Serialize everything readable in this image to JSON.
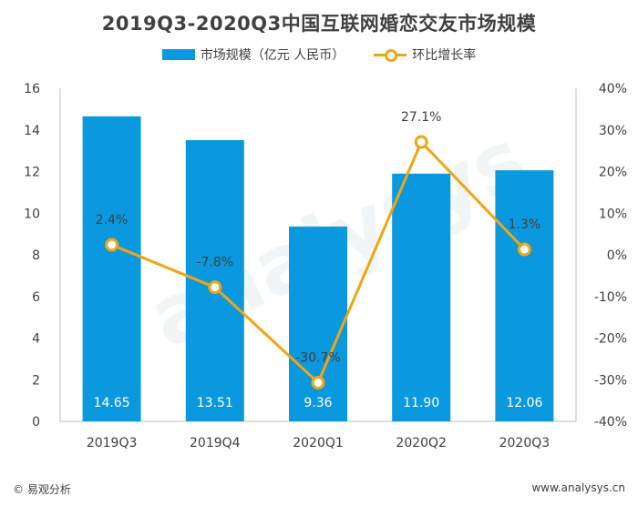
{
  "chart_data": {
    "type": "bar",
    "title": "2019Q3-2020Q3中国互联网婚恋交友市场规模",
    "categories": [
      "2019Q3",
      "2019Q4",
      "2020Q1",
      "2020Q2",
      "2020Q3"
    ],
    "series": [
      {
        "name": "市场规模（亿元 人民币）",
        "type": "bar",
        "axis": "left",
        "values": [
          14.65,
          13.51,
          9.36,
          11.9,
          12.06
        ],
        "labels": [
          "14.65",
          "13.51",
          "9.36",
          "11.90",
          "12.06"
        ],
        "color": "#0a98de"
      },
      {
        "name": "环比增长率",
        "type": "line",
        "axis": "right",
        "values": [
          2.4,
          -7.8,
          -30.7,
          27.1,
          1.3
        ],
        "labels": [
          "2.4%",
          "-7.8%",
          "-30.7%",
          "27.1%",
          "1.3%"
        ],
        "color": "#f1a512"
      }
    ],
    "y_left": {
      "min": 0,
      "max": 16,
      "ticks": [
        "0",
        "2",
        "4",
        "6",
        "8",
        "10",
        "12",
        "14",
        "16"
      ]
    },
    "y_right": {
      "min": -40,
      "max": 40,
      "ticks": [
        "-40%",
        "-30%",
        "-20%",
        "-10%",
        "0%",
        "10%",
        "20%",
        "30%",
        "40%"
      ]
    },
    "grid": false,
    "legend_position": "top"
  },
  "footer": {
    "source": "© 易观分析",
    "url": "www.analysys.cn"
  },
  "watermark": "analysys"
}
